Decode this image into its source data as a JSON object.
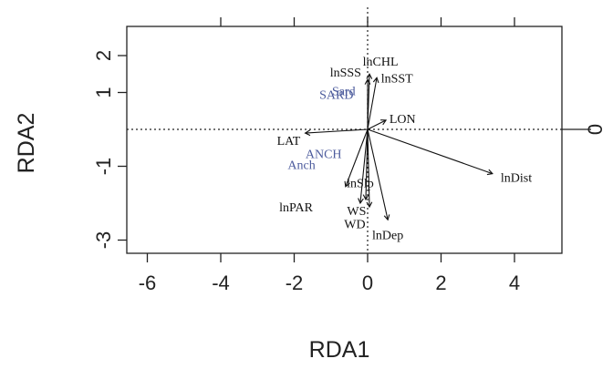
{
  "chart_data": {
    "type": "scatter",
    "xlabel": "RDA1",
    "ylabel": "RDA2",
    "xlim": [
      -6.5,
      5.3
    ],
    "ylim": [
      -3.3,
      2.9
    ],
    "xticks": [
      -6,
      -4,
      -2,
      0,
      2,
      4
    ],
    "yticks": [
      -3,
      -1,
      1,
      2
    ],
    "top_ticks": [
      -4,
      -2,
      0,
      2,
      4
    ],
    "right_ticks": [
      0
    ],
    "right_tick_label": "0",
    "grid": false,
    "reference_lines": {
      "x": 0,
      "y": 0,
      "style": "dotted"
    },
    "arrows": [
      {
        "label": "lnCHL",
        "x": 0.05,
        "y": 1.5,
        "lx": 0.35,
        "ly": 1.85
      },
      {
        "label": "lnSSS",
        "x": 0.0,
        "y": 1.35,
        "lx": -0.6,
        "ly": 1.55
      },
      {
        "label": "lnSST",
        "x": 0.25,
        "y": 1.4,
        "lx": 0.8,
        "ly": 1.4
      },
      {
        "label": "LON",
        "x": 0.5,
        "y": 0.25,
        "lx": 0.95,
        "ly": 0.3
      },
      {
        "label": "LAT",
        "x": -1.7,
        "y": -0.1,
        "lx": -2.15,
        "ly": -0.3
      },
      {
        "label": "lnDist",
        "x": 3.4,
        "y": -1.2,
        "lx": 4.05,
        "ly": -1.3
      },
      {
        "label": "lnSlp",
        "x": -0.6,
        "y": -1.55,
        "lx": -0.2,
        "ly": -1.45
      },
      {
        "label": "lnPAR",
        "x": -0.2,
        "y": -2.0,
        "lx": -1.95,
        "ly": -2.1
      },
      {
        "label": "WS",
        "x": -0.05,
        "y": -1.9,
        "lx": -0.3,
        "ly": -2.2
      },
      {
        "label": "WD",
        "x": 0.05,
        "y": -2.1,
        "lx": -0.35,
        "ly": -2.55
      },
      {
        "label": "lnDep",
        "x": 0.55,
        "y": -2.45,
        "lx": 0.55,
        "ly": -2.85
      }
    ],
    "species": [
      {
        "label": "SARD",
        "x": -0.85,
        "y": 0.95
      },
      {
        "label": "Sard",
        "x": -0.65,
        "y": 1.05
      },
      {
        "label": "ANCH",
        "x": -1.2,
        "y": -0.65
      },
      {
        "label": "Anch",
        "x": -1.8,
        "y": -0.95
      }
    ],
    "arrow_color": "#111111",
    "species_color": "#4b5a9c"
  }
}
